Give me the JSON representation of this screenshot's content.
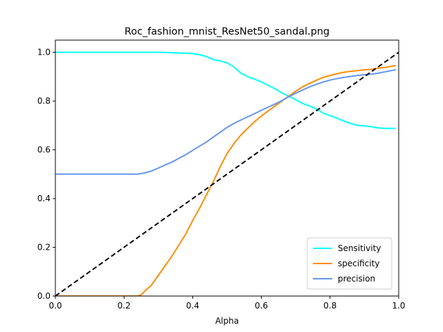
{
  "chart_data": {
    "type": "line",
    "title": "Roc_fashion_mnist_ResNet50_sandal.png",
    "xlabel": "Alpha",
    "ylabel": "",
    "xlim": [
      0,
      1
    ],
    "ylim": [
      0,
      1.05
    ],
    "x_ticks": [
      0.0,
      0.2,
      0.4,
      0.6,
      0.8,
      1.0
    ],
    "x_tick_labels": [
      "0.0",
      "0.2",
      "0.4",
      "0.6",
      "0.8",
      "1.0"
    ],
    "y_ticks": [
      0.0,
      0.2,
      0.4,
      0.6,
      0.8,
      1.0
    ],
    "y_tick_labels": [
      "0.0",
      "0.2",
      "0.4",
      "0.6",
      "0.8",
      "1.0"
    ],
    "grid": false,
    "legend_position": "lower right",
    "series": [
      {
        "name": "Sensitivity",
        "color": "#00ffff",
        "dashed": false,
        "points": [
          [
            0.0,
            1.0
          ],
          [
            0.1,
            1.0
          ],
          [
            0.2,
            1.0
          ],
          [
            0.3,
            1.0
          ],
          [
            0.35,
            0.998
          ],
          [
            0.4,
            0.995
          ],
          [
            0.42,
            0.99
          ],
          [
            0.44,
            0.983
          ],
          [
            0.46,
            0.97
          ],
          [
            0.48,
            0.965
          ],
          [
            0.5,
            0.957
          ],
          [
            0.52,
            0.94
          ],
          [
            0.54,
            0.915
          ],
          [
            0.56,
            0.9
          ],
          [
            0.58,
            0.89
          ],
          [
            0.6,
            0.878
          ],
          [
            0.62,
            0.865
          ],
          [
            0.64,
            0.85
          ],
          [
            0.66,
            0.833
          ],
          [
            0.68,
            0.82
          ],
          [
            0.7,
            0.805
          ],
          [
            0.72,
            0.79
          ],
          [
            0.74,
            0.78
          ],
          [
            0.76,
            0.768
          ],
          [
            0.78,
            0.75
          ],
          [
            0.8,
            0.74
          ],
          [
            0.82,
            0.73
          ],
          [
            0.84,
            0.718
          ],
          [
            0.86,
            0.708
          ],
          [
            0.88,
            0.7
          ],
          [
            0.9,
            0.698
          ],
          [
            0.92,
            0.695
          ],
          [
            0.94,
            0.69
          ],
          [
            0.96,
            0.688
          ],
          [
            0.99,
            0.688
          ]
        ]
      },
      {
        "name": "specificity",
        "color": "#ff8c00",
        "dashed": false,
        "points": [
          [
            0.0,
            0.0
          ],
          [
            0.1,
            0.0
          ],
          [
            0.2,
            0.0
          ],
          [
            0.24,
            0.0
          ],
          [
            0.25,
            0.005
          ],
          [
            0.26,
            0.02
          ],
          [
            0.28,
            0.045
          ],
          [
            0.3,
            0.085
          ],
          [
            0.32,
            0.125
          ],
          [
            0.34,
            0.165
          ],
          [
            0.36,
            0.21
          ],
          [
            0.38,
            0.255
          ],
          [
            0.4,
            0.31
          ],
          [
            0.42,
            0.36
          ],
          [
            0.44,
            0.415
          ],
          [
            0.46,
            0.47
          ],
          [
            0.48,
            0.53
          ],
          [
            0.5,
            0.585
          ],
          [
            0.52,
            0.625
          ],
          [
            0.54,
            0.66
          ],
          [
            0.56,
            0.688
          ],
          [
            0.58,
            0.715
          ],
          [
            0.6,
            0.738
          ],
          [
            0.62,
            0.76
          ],
          [
            0.64,
            0.78
          ],
          [
            0.66,
            0.8
          ],
          [
            0.68,
            0.82
          ],
          [
            0.7,
            0.84
          ],
          [
            0.72,
            0.858
          ],
          [
            0.74,
            0.872
          ],
          [
            0.76,
            0.885
          ],
          [
            0.78,
            0.897
          ],
          [
            0.8,
            0.905
          ],
          [
            0.82,
            0.912
          ],
          [
            0.84,
            0.918
          ],
          [
            0.86,
            0.922
          ],
          [
            0.88,
            0.925
          ],
          [
            0.9,
            0.928
          ],
          [
            0.92,
            0.93
          ],
          [
            0.94,
            0.935
          ],
          [
            0.96,
            0.938
          ],
          [
            0.99,
            0.945
          ]
        ]
      },
      {
        "name": "precision",
        "color": "#6495ed",
        "dashed": false,
        "points": [
          [
            0.0,
            0.5
          ],
          [
            0.1,
            0.5
          ],
          [
            0.2,
            0.5
          ],
          [
            0.24,
            0.5
          ],
          [
            0.26,
            0.505
          ],
          [
            0.28,
            0.513
          ],
          [
            0.3,
            0.525
          ],
          [
            0.32,
            0.538
          ],
          [
            0.34,
            0.55
          ],
          [
            0.36,
            0.565
          ],
          [
            0.38,
            0.58
          ],
          [
            0.4,
            0.598
          ],
          [
            0.42,
            0.615
          ],
          [
            0.44,
            0.632
          ],
          [
            0.46,
            0.652
          ],
          [
            0.48,
            0.672
          ],
          [
            0.5,
            0.692
          ],
          [
            0.52,
            0.708
          ],
          [
            0.54,
            0.722
          ],
          [
            0.56,
            0.735
          ],
          [
            0.58,
            0.748
          ],
          [
            0.6,
            0.762
          ],
          [
            0.62,
            0.775
          ],
          [
            0.64,
            0.788
          ],
          [
            0.66,
            0.802
          ],
          [
            0.68,
            0.818
          ],
          [
            0.7,
            0.832
          ],
          [
            0.72,
            0.845
          ],
          [
            0.74,
            0.858
          ],
          [
            0.76,
            0.868
          ],
          [
            0.78,
            0.878
          ],
          [
            0.8,
            0.886
          ],
          [
            0.82,
            0.892
          ],
          [
            0.84,
            0.897
          ],
          [
            0.86,
            0.901
          ],
          [
            0.88,
            0.905
          ],
          [
            0.9,
            0.908
          ],
          [
            0.92,
            0.91
          ],
          [
            0.94,
            0.914
          ],
          [
            0.96,
            0.92
          ],
          [
            0.99,
            0.928
          ]
        ]
      },
      {
        "name": "",
        "color": "#000000",
        "dashed": true,
        "points": [
          [
            0.0,
            0.0
          ],
          [
            1.0,
            1.0
          ]
        ]
      }
    ]
  }
}
